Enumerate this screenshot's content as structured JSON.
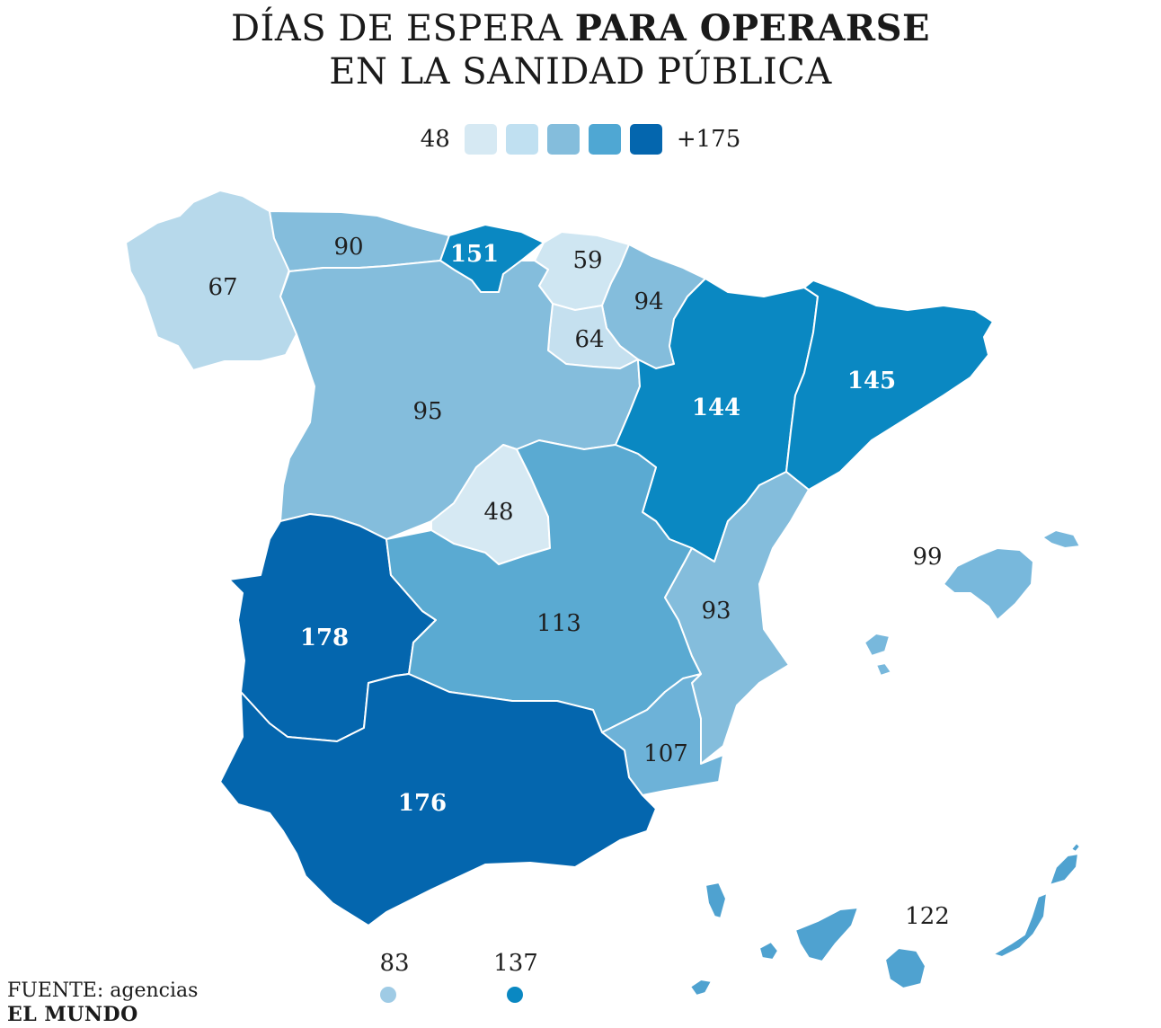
{
  "title": {
    "line1_normal": "DÍAS DE ESPERA ",
    "line1_bold": "PARA OPERARSE",
    "line2": "EN LA SANIDAD PÚBLICA"
  },
  "legend": {
    "min_label": "48",
    "max_label": "+175",
    "colors": [
      "#d6e9f3",
      "#c0e0f1",
      "#84bddc",
      "#4fa7d3",
      "#0466ae"
    ]
  },
  "regions": {
    "galicia": "67",
    "asturias": "90",
    "cantabria": "151",
    "pais_vasco": "59",
    "navarra": "94",
    "la_rioja": "64",
    "castilla_leon": "95",
    "aragon": "144",
    "cataluna": "145",
    "madrid": "48",
    "extremadura": "178",
    "castilla_la_mancha": "113",
    "valencia": "93",
    "murcia": "107",
    "andalucia": "176",
    "baleares": "99",
    "canarias": "122",
    "ceuta": "83",
    "melilla": "137"
  },
  "colors": {
    "galicia": "#b7d9eb",
    "asturias": "#84bddc",
    "cantabria": "#0a88c2",
    "pais_vasco": "#cfe6f2",
    "navarra": "#84bddc",
    "la_rioja": "#c5e0ef",
    "castilla_leon": "#84bddc",
    "aragon": "#0a88c2",
    "cataluna": "#0a88c2",
    "madrid": "#d6e9f3",
    "extremadura": "#0466ae",
    "castilla_la_mancha": "#5aaad2",
    "valencia": "#84bddc",
    "murcia": "#6db2d8",
    "andalucia": "#0466ae",
    "baleares": "#78b8dc",
    "canarias": "#4fa2d0",
    "ceuta": "#9fcbe5",
    "melilla": "#0a88c2"
  },
  "source": {
    "label": "FUENTE:",
    "value": " agencias",
    "brand": "EL MUNDO"
  }
}
